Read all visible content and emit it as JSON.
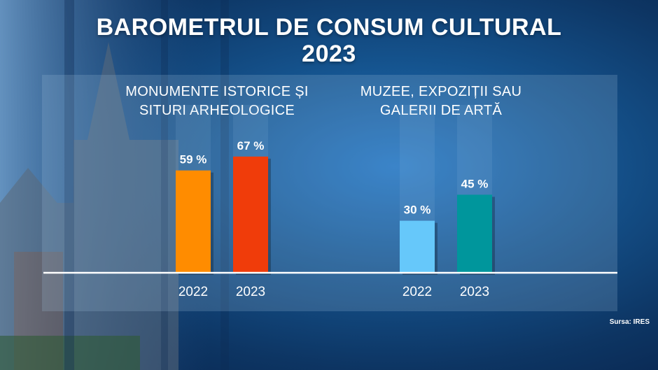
{
  "title": {
    "line1": "BAROMETRUL DE CONSUM CULTURAL",
    "line2": "2023"
  },
  "source": "Sursa: IRES",
  "chart_data": [
    {
      "type": "bar",
      "title_lines": [
        "MONUMENTE ISTORICE ȘI",
        "SITURI ARHEOLOGICE"
      ],
      "categories": [
        "2022",
        "2023"
      ],
      "values": [
        59,
        67
      ],
      "value_labels": [
        "59 %",
        "67 %"
      ],
      "colors": [
        "#ff8c00",
        "#f03c0a"
      ],
      "ylim": [
        0,
        100
      ]
    },
    {
      "type": "bar",
      "title_lines": [
        "MUZEE, EXPOZIȚII SAU",
        "GALERII DE ARTĂ"
      ],
      "categories": [
        "2022",
        "2023"
      ],
      "values": [
        30,
        45
      ],
      "value_labels": [
        "30 %",
        "45 %"
      ],
      "colors": [
        "#66c8fa",
        "#00969c"
      ],
      "ylim": [
        0,
        100
      ]
    }
  ]
}
